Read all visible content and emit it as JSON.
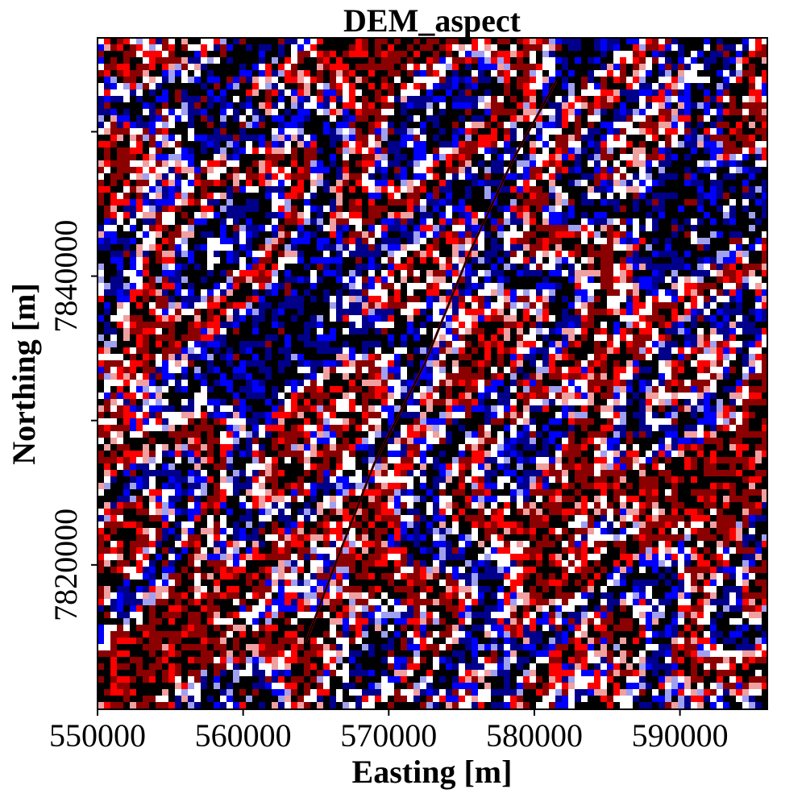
{
  "title": "DEM_aspect",
  "x_axis": {
    "label": "Easting [m]",
    "range": [
      550000,
      596000
    ],
    "ticks": [
      550000,
      560000,
      570000,
      580000,
      590000
    ],
    "tick_labels": [
      "550000",
      "560000",
      "570000",
      "580000",
      "590000"
    ]
  },
  "y_axis": {
    "label": "Northing [m]",
    "range": [
      7810000,
      7856500
    ],
    "ticks": [
      7820000,
      7830000,
      7840000,
      7850000
    ],
    "tick_labels": [
      "7820000",
      "",
      "7840000",
      ""
    ]
  },
  "colormap": [
    "#000000",
    "#8b0000",
    "#ff0000",
    "#f0a0a0",
    "#ffffff",
    "#a0a0f0",
    "#0000ff",
    "#00008b"
  ],
  "overlay": {
    "outline_color": "#cc0000",
    "line_color": "#000000",
    "path": [
      [
        564300,
        7814600
      ],
      [
        566500,
        7820500
      ],
      [
        569000,
        7827000
      ],
      [
        572500,
        7834000
      ],
      [
        575500,
        7841500
      ],
      [
        578500,
        7848000
      ],
      [
        581500,
        7853500
      ]
    ]
  }
}
